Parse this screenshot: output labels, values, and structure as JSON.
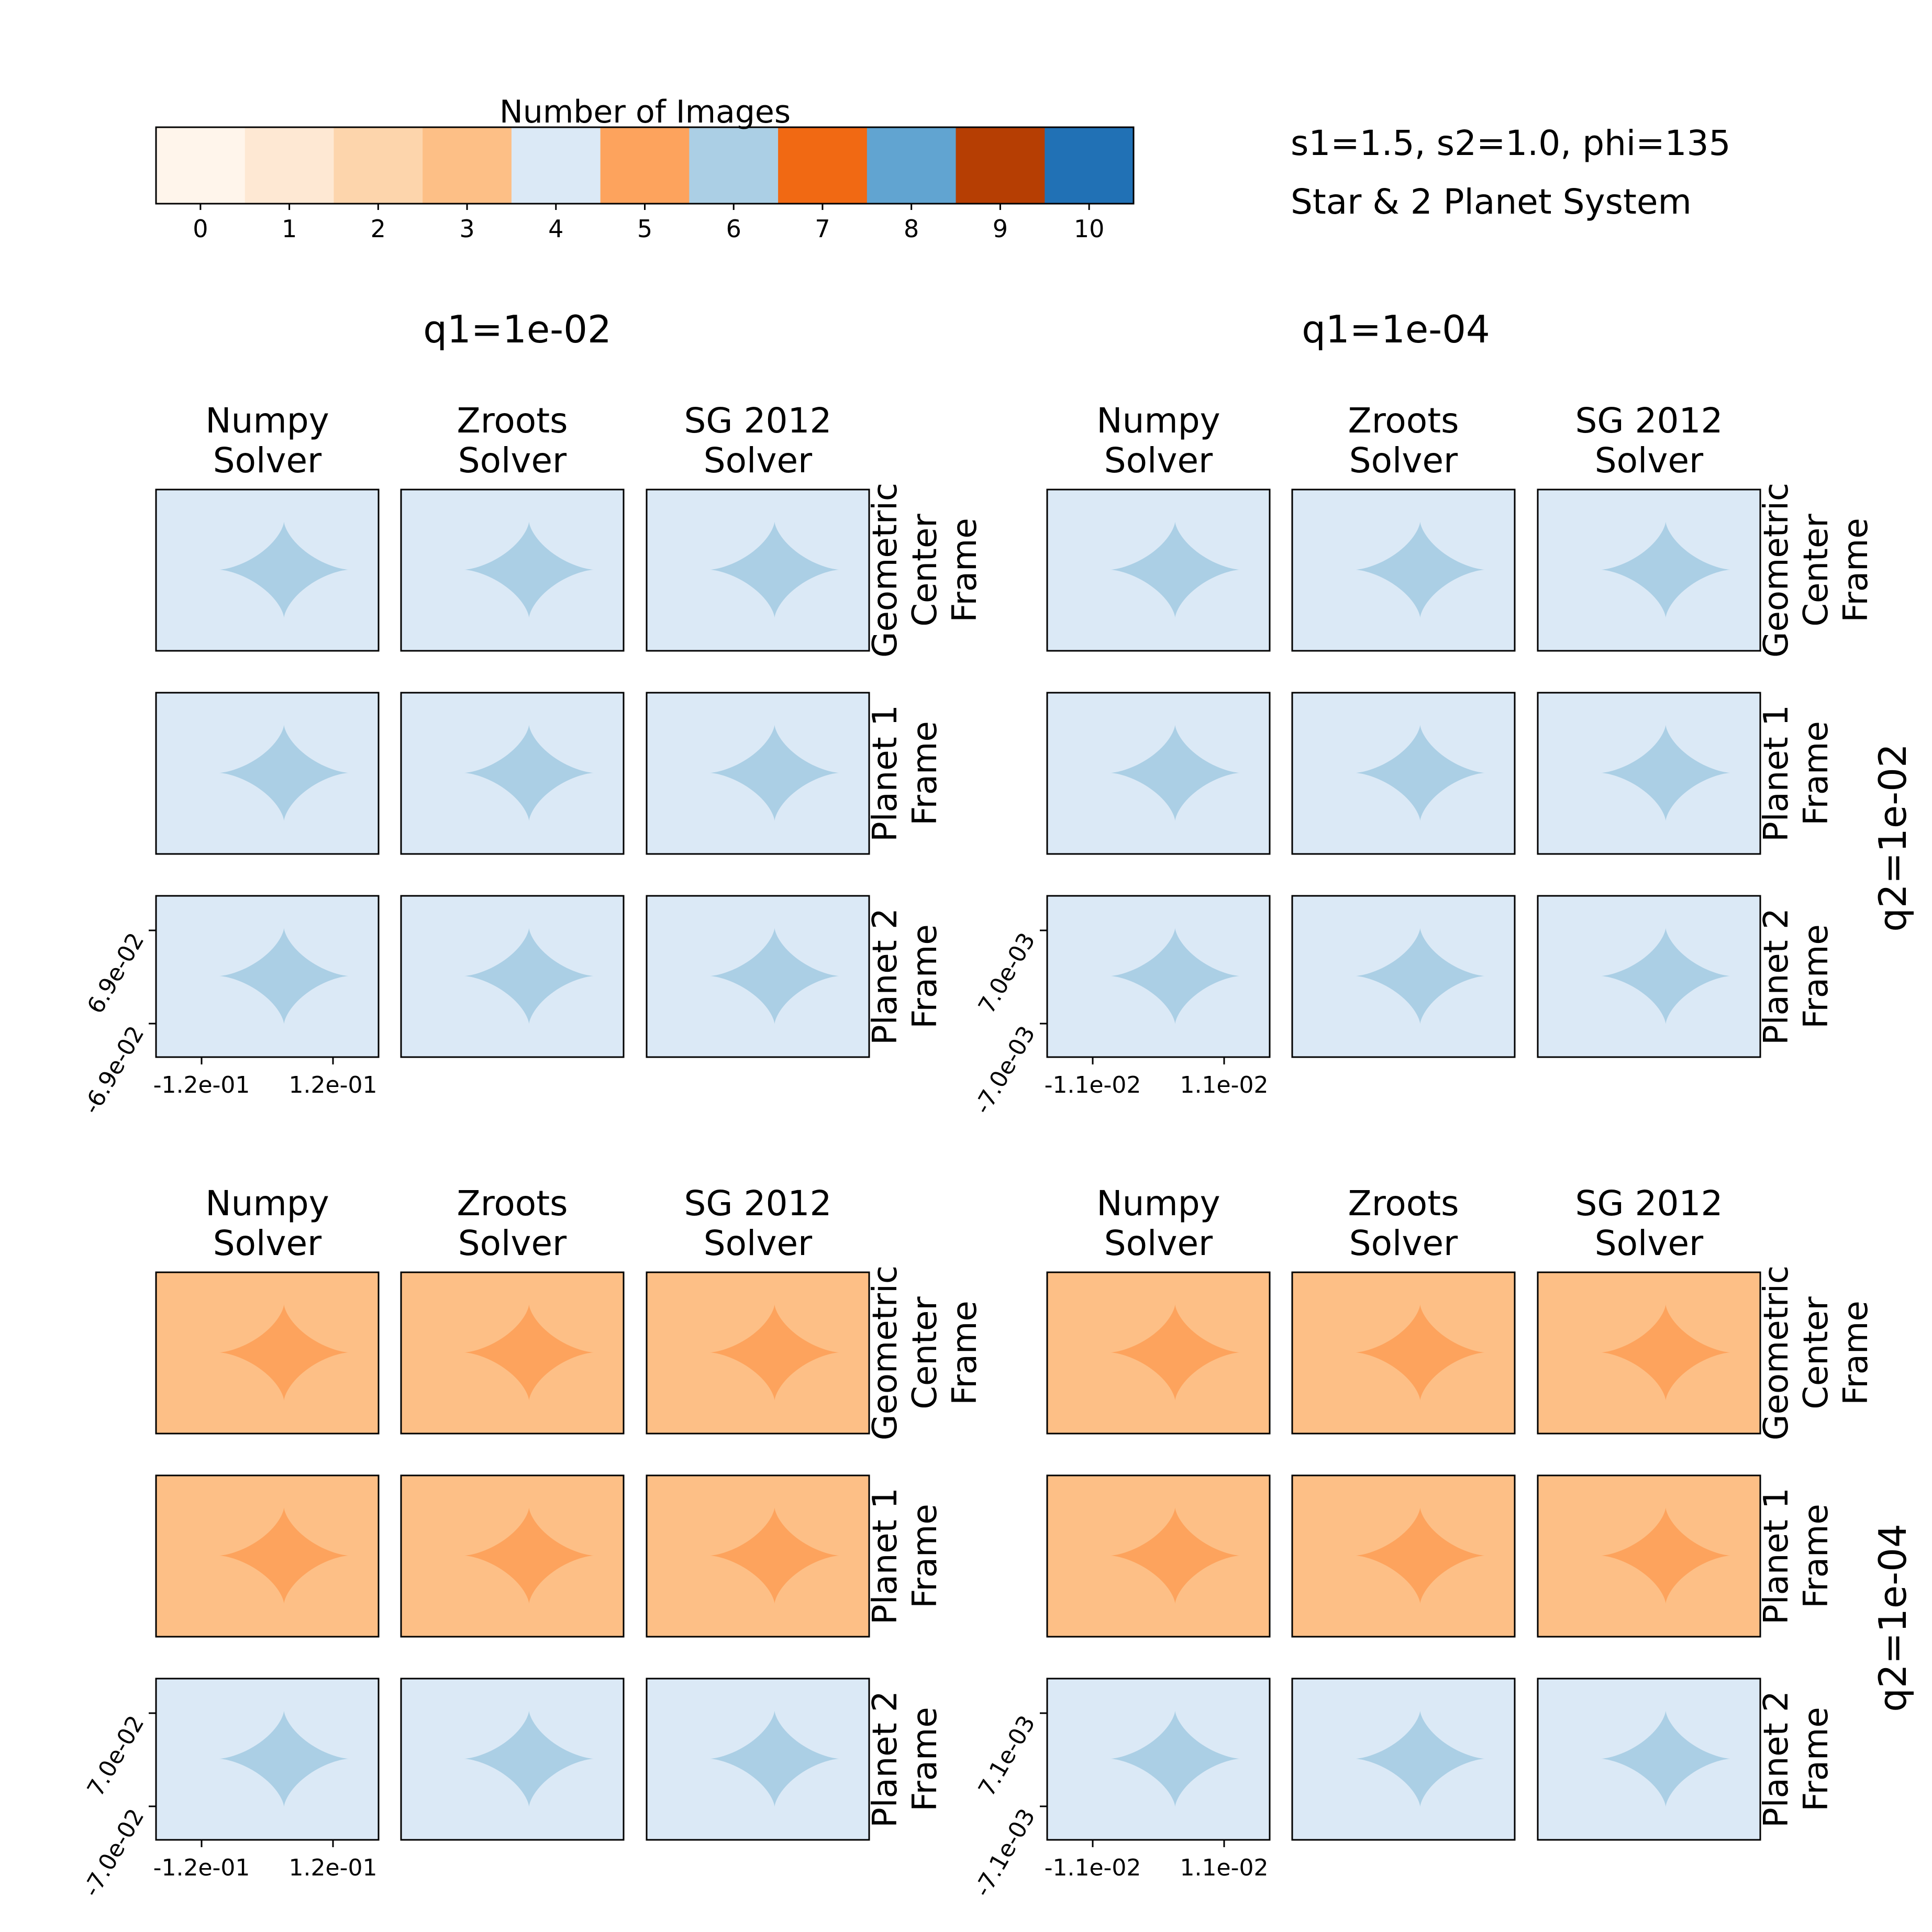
{
  "colorbar": {
    "label": "Number of Images",
    "ticks": [
      "0",
      "1",
      "2",
      "3",
      "4",
      "5",
      "6",
      "7",
      "8",
      "9",
      "10"
    ],
    "colors": [
      "#fff5eb",
      "#fee8d3",
      "#fdd5ac",
      "#fdbf86",
      "#dbe9f6",
      "#fda35d",
      "#abcfe5",
      "#f16913",
      "#61a4d1",
      "#b63e03",
      "#2171b5"
    ]
  },
  "info": {
    "params": "s1=1.5, s2=1.0, phi=135",
    "system": "Star & 2 Planet System"
  },
  "col_groups": [
    "q1=1e-02",
    "q1=1e-04"
  ],
  "row_groups": [
    "q2=1e-02",
    "q2=1e-04"
  ],
  "solvers": [
    {
      "line1": "Numpy",
      "line2": "Solver"
    },
    {
      "line1": "Zroots",
      "line2": "Solver"
    },
    {
      "line1": "SG 2012",
      "line2": "Solver"
    }
  ],
  "frames": [
    [
      "Geometric",
      "Center",
      "Frame"
    ],
    [
      "Planet 1",
      "Frame"
    ],
    [
      "Planet 2",
      "Frame"
    ]
  ],
  "axes_ticks": [
    {
      "x": [
        "-1.2e-01",
        "1.2e-01"
      ],
      "y": [
        "6.9e-02",
        "-6.9e-02"
      ]
    },
    {
      "x": [
        "-1.1e-02",
        "1.1e-02"
      ],
      "y": [
        "7.0e-03",
        "-7.0e-03"
      ]
    },
    {
      "x": [
        "-1.2e-01",
        "1.2e-01"
      ],
      "y": [
        "7.0e-02",
        "-7.0e-02"
      ]
    },
    {
      "x": [
        "-1.1e-02",
        "1.1e-02"
      ],
      "y": [
        "7.1e-03",
        "-7.1e-03"
      ]
    }
  ],
  "chart_data": {
    "type": "heatmap",
    "title": "",
    "colorbar_label": "Number of Images",
    "colorbar_range": [
      0,
      10
    ],
    "panels": [
      {
        "q1": "1e-02",
        "q2": "1e-02",
        "frames": {
          "Geometric Center Frame": {
            "outside": 4,
            "inside": 6
          },
          "Planet 1 Frame": {
            "outside": 4,
            "inside": 6
          },
          "Planet 2 Frame": {
            "outside": 4,
            "inside": 6
          }
        }
      },
      {
        "q1": "1e-04",
        "q2": "1e-02",
        "frames": {
          "Geometric Center Frame": {
            "outside": 4,
            "inside": 6
          },
          "Planet 1 Frame": {
            "outside": 4,
            "inside": 6
          },
          "Planet 2 Frame": {
            "outside": 4,
            "inside": 6
          }
        }
      },
      {
        "q1": "1e-02",
        "q2": "1e-04",
        "frames": {
          "Geometric Center Frame": {
            "outside": 3,
            "inside": 5
          },
          "Planet 1 Frame": {
            "outside": 3,
            "inside": 5
          },
          "Planet 2 Frame": {
            "outside": 4,
            "inside": 6
          }
        }
      },
      {
        "q1": "1e-04",
        "q2": "1e-04",
        "frames": {
          "Geometric Center Frame": {
            "outside": 3,
            "inside": 5
          },
          "Planet 1 Frame": {
            "outside": 3,
            "inside": 5
          },
          "Planet 2 Frame": {
            "outside": 4,
            "inside": 6
          }
        }
      }
    ]
  }
}
